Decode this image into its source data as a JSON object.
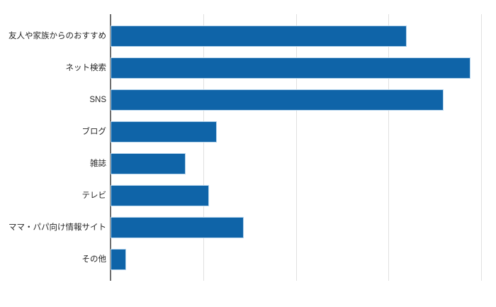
{
  "chart_data": {
    "type": "bar",
    "orientation": "horizontal",
    "title": "",
    "categories": [
      "友人や家族からのおすすめ",
      "ネット検索",
      "SNS",
      "ブログ",
      "雑誌",
      "テレビ",
      "ママ・パパ向け情報サイト",
      "その他"
    ],
    "values": [
      63.7,
      77.4,
      71.6,
      22.6,
      15.9,
      20.9,
      28.4,
      3.1
    ],
    "xlim": [
      0,
      80
    ],
    "x_gridlines": [
      0,
      20,
      40,
      60,
      80
    ],
    "x_tick_labels_visible": false,
    "grid": true,
    "legend": false,
    "colors": {
      "bar_fill": "#0f64a8",
      "bar_halo": "#b5d4ec",
      "axis_line": "#6e6e6e",
      "gridline": "#e0e0e0",
      "label_text": "#262626",
      "background": "#ffffff"
    }
  }
}
